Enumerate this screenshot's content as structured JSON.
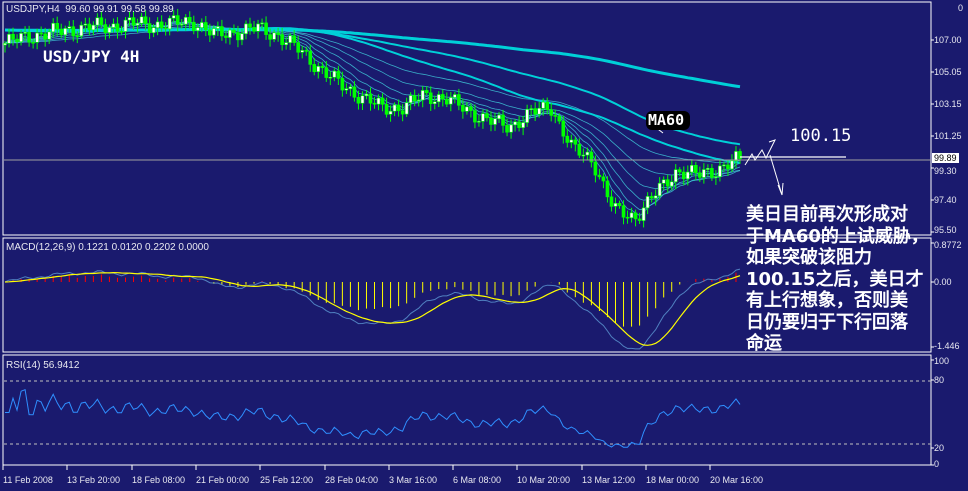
{
  "header": {
    "symbol_tf": "USDJPY,H4",
    "ohlc": "99.60 99.91 99.58 99.89"
  },
  "annotations": {
    "pair_title": "USD/JPY 4H",
    "ma_label": "MA60",
    "resistance_label": "100.15",
    "note_lines": [
      "美日目前再次形成对",
      "于MA60的上试威胁，",
      "如果突破该阻力",
      "100.15之后，美日才",
      "有上行想象，否则美",
      "日仍要归于下行回落",
      "命运"
    ]
  },
  "price_axis": {
    "ticks": [
      "107.00",
      "105.05",
      "103.15",
      "101.25",
      "99.30",
      "97.40",
      "95.50"
    ],
    "current_price": "99.89",
    "corner": "0"
  },
  "macd": {
    "label": "MACD(12,26,9) 0.1221 0.0120 0.2202 0.0000",
    "ticks": [
      "0.8772",
      "0.00",
      "-1.446"
    ]
  },
  "rsi": {
    "label": "RSI(14) 56.9412",
    "ticks": [
      "100",
      "80",
      "20",
      "0"
    ]
  },
  "colors": {
    "background": "#1a1a6e",
    "candle": "#00ff00",
    "ma_slow": "#00d0d8",
    "ma_ribbon": "#40c8d8",
    "macd_line": "#5080c0",
    "signal_line": "#ffff00",
    "hist_up": "#ff0000",
    "hist_down": "#ffff00",
    "rsi_line": "#2f8fff",
    "current_price_line": "#a0a0a0"
  },
  "chart_data": {
    "type": "candlestick",
    "title": "USDJPY,H4",
    "x_tick_labels": [
      "11 Feb 2008",
      "13 Feb 20:00",
      "18 Feb 08:00",
      "21 Feb 00:00",
      "25 Feb 12:00",
      "28 Feb 04:00",
      "3 Mar 16:00",
      "6 Mar 08:00",
      "10 Mar 20:00",
      "13 Mar 12:00",
      "18 Mar 00:00",
      "20 Mar 16:00"
    ],
    "ylim": [
      95.3,
      108.5
    ],
    "close_approx": [
      106.8,
      107.2,
      107.4,
      107.6,
      107.8,
      107.8,
      108.0,
      107.9,
      108.0,
      108.1,
      107.3,
      107.5,
      107.7,
      107.3,
      106.4,
      105.3,
      104.3,
      103.6,
      102.9,
      103.0,
      103.7,
      103.5,
      102.8,
      102.2,
      101.8,
      102.6,
      103.0,
      100.5,
      99.8,
      96.8,
      96.4,
      97.8,
      99.2,
      98.9,
      99.3,
      99.89
    ],
    "resistance_level": 100.15,
    "last_bar": {
      "open": 99.6,
      "high": 99.91,
      "low": 99.58,
      "close": 99.89
    },
    "indicators": {
      "macd": {
        "params": [
          12,
          26,
          9
        ],
        "values": [
          0.1221,
          0.012,
          0.2202,
          0.0
        ],
        "ylim": [
          -1.446,
          0.8772
        ]
      },
      "rsi": {
        "period": 14,
        "value": 56.9412,
        "levels": [
          20,
          80
        ],
        "ylim": [
          0,
          100
        ]
      }
    }
  }
}
